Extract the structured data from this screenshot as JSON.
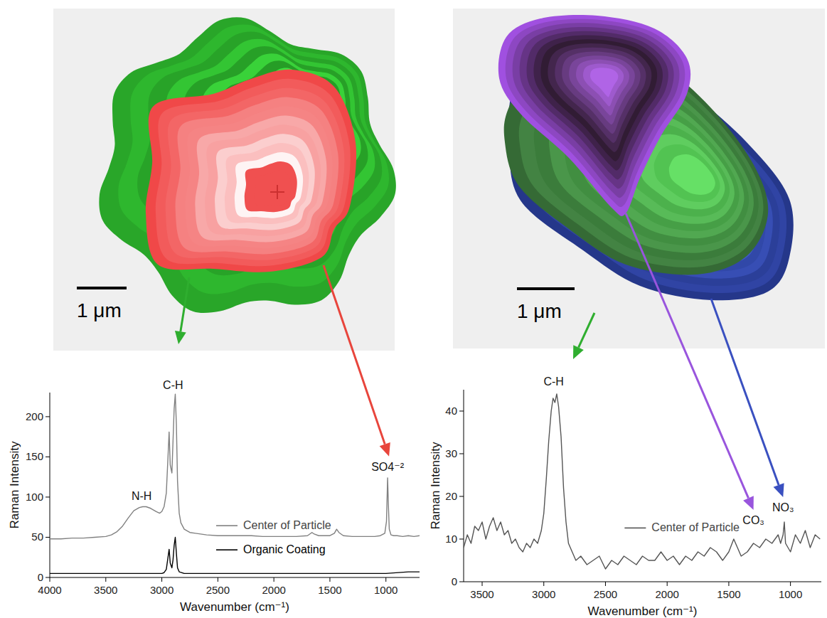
{
  "maps": [
    {
      "scale_label": "1 μm"
    },
    {
      "scale_label": "1 μm"
    }
  ],
  "chart_data": [
    {
      "type": "line",
      "x_label": "Wavenumber (cm⁻¹)",
      "y_label": "Raman Intensity",
      "xlim": [
        4000,
        700
      ],
      "ylim": [
        0,
        230
      ],
      "xticks": [
        4000,
        3500,
        3000,
        2500,
        2000,
        1500,
        1000
      ],
      "yticks": [
        0,
        50,
        100,
        150,
        200
      ],
      "legend": "center",
      "series": [
        {
          "name": "Center of Particle",
          "color": "#808080",
          "x": [
            4000,
            3900,
            3800,
            3700,
            3600,
            3500,
            3450,
            3400,
            3350,
            3300,
            3250,
            3200,
            3170,
            3140,
            3100,
            3050,
            3020,
            3000,
            2980,
            2960,
            2945,
            2935,
            2925,
            2910,
            2900,
            2890,
            2880,
            2870,
            2860,
            2845,
            2830,
            2800,
            2750,
            2700,
            2600,
            2500,
            2400,
            2300,
            2200,
            2100,
            2000,
            1900,
            1800,
            1700,
            1660,
            1640,
            1600,
            1500,
            1460,
            1440,
            1420,
            1380,
            1300,
            1200,
            1100,
            1050,
            1010,
            995,
            985,
            978,
            970,
            955,
            930,
            900,
            850,
            800,
            750,
            700
          ],
          "values": [
            48,
            48,
            49,
            49,
            50,
            51,
            53,
            57,
            64,
            74,
            83,
            87,
            88,
            88,
            86,
            82,
            80,
            82,
            88,
            105,
            150,
            181,
            140,
            130,
            170,
            210,
            228,
            190,
            120,
            80,
            68,
            60,
            56,
            55,
            53,
            52,
            52,
            52,
            52,
            51,
            51,
            51,
            51,
            52,
            56,
            54,
            52,
            52,
            55,
            60,
            56,
            52,
            51,
            51,
            51,
            52,
            55,
            70,
            124,
            90,
            60,
            53,
            52,
            52,
            51,
            52,
            51,
            52
          ]
        },
        {
          "name": "Organic Coating",
          "color": "#000000",
          "x": [
            4000,
            3500,
            3200,
            3000,
            2980,
            2960,
            2945,
            2935,
            2925,
            2910,
            2900,
            2890,
            2880,
            2870,
            2860,
            2845,
            2800,
            2500,
            2000,
            1500,
            1000,
            800,
            700
          ],
          "values": [
            5,
            5,
            5,
            5,
            6,
            10,
            25,
            35,
            18,
            12,
            22,
            40,
            50,
            30,
            12,
            7,
            5,
            5,
            5,
            5,
            5,
            7,
            7
          ]
        }
      ],
      "annotations": [
        {
          "text": "N-H",
          "x": 3180,
          "y": 96
        },
        {
          "text": "C-H",
          "x": 2900,
          "y": 234
        },
        {
          "text": "SO4⁻²",
          "x": 985,
          "y": 133
        }
      ]
    },
    {
      "type": "line",
      "x_label": "Wavenumber (cm⁻¹)",
      "y_label": "Raman Intensity",
      "xlim": [
        3650,
        750
      ],
      "ylim": [
        0,
        45
      ],
      "xticks": [
        3500,
        3000,
        2500,
        2000,
        1500,
        1000
      ],
      "yticks": [
        0,
        10,
        20,
        30,
        40
      ],
      "legend": "center",
      "series": [
        {
          "name": "Center of Particle",
          "color": "#555555",
          "x": [
            3650,
            3620,
            3590,
            3560,
            3530,
            3500,
            3470,
            3440,
            3410,
            3380,
            3350,
            3320,
            3290,
            3260,
            3230,
            3200,
            3170,
            3140,
            3110,
            3080,
            3050,
            3020,
            3000,
            2980,
            2960,
            2940,
            2925,
            2910,
            2895,
            2880,
            2860,
            2840,
            2820,
            2800,
            2770,
            2740,
            2700,
            2650,
            2600,
            2550,
            2500,
            2450,
            2400,
            2350,
            2300,
            2250,
            2200,
            2150,
            2100,
            2050,
            2000,
            1950,
            1900,
            1850,
            1800,
            1750,
            1700,
            1650,
            1600,
            1550,
            1500,
            1460,
            1430,
            1400,
            1350,
            1300,
            1250,
            1200,
            1150,
            1100,
            1080,
            1060,
            1050,
            1040,
            1020,
            1000,
            960,
            920,
            880,
            840,
            800,
            760
          ],
          "values": [
            8,
            11,
            9,
            13,
            12,
            14,
            10,
            13,
            15,
            12,
            14,
            11,
            12,
            9,
            10,
            8,
            7,
            9,
            8,
            10,
            9,
            12,
            16,
            24,
            33,
            40,
            43,
            42,
            44,
            41,
            34,
            22,
            14,
            9,
            7,
            5,
            6,
            4,
            5,
            6,
            3,
            5,
            4,
            6,
            5,
            4,
            6,
            5,
            5,
            7,
            5,
            6,
            4,
            6,
            5,
            7,
            6,
            8,
            7,
            5,
            7,
            10,
            8,
            6,
            7,
            9,
            8,
            10,
            9,
            11,
            9,
            11,
            14,
            9,
            8,
            7,
            11,
            9,
            12,
            8,
            11,
            10
          ]
        }
      ],
      "annotations": [
        {
          "text": "C-H",
          "x": 2920,
          "y": 46
        },
        {
          "text": "CO₃",
          "x": 1300,
          "y": 13.5
        },
        {
          "text": "NO₃",
          "x": 1060,
          "y": 16.5
        }
      ]
    }
  ]
}
